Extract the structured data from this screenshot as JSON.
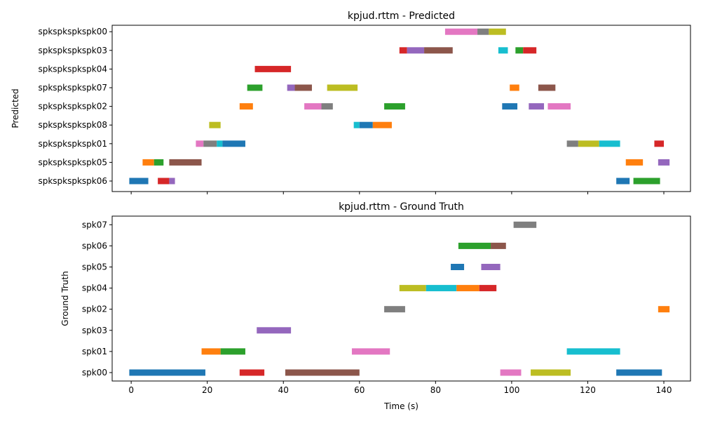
{
  "chart_data": [
    {
      "type": "broken_barh",
      "title": "kpjud.rttm - Predicted",
      "ylabel": "Predicted",
      "xlabel": "",
      "xlim": [
        -5,
        147
      ],
      "xticks": [
        0,
        20,
        40,
        60,
        80,
        100,
        120,
        140
      ],
      "show_xtick_labels": false,
      "speakers": [
        "spkspkspkspk06",
        "spkspkspkspk05",
        "spkspkspkspk01",
        "spkspkspkspk08",
        "spkspkspkspk02",
        "spkspkspkspk07",
        "spkspkspkspk04",
        "spkspkspkspk03",
        "spkspkspkspk00"
      ],
      "segments": [
        {
          "speaker": "spkspkspkspk00",
          "start": 82.5,
          "end": 91.0,
          "color": "#e377c2"
        },
        {
          "speaker": "spkspkspkspk00",
          "start": 91.0,
          "end": 94.0,
          "color": "#7f7f7f"
        },
        {
          "speaker": "spkspkspkspk00",
          "start": 94.0,
          "end": 98.5,
          "color": "#bcbd22"
        },
        {
          "speaker": "spkspkspkspk03",
          "start": 70.5,
          "end": 72.5,
          "color": "#d62728"
        },
        {
          "speaker": "spkspkspkspk03",
          "start": 72.5,
          "end": 77.0,
          "color": "#9467bd"
        },
        {
          "speaker": "spkspkspkspk03",
          "start": 77.0,
          "end": 84.5,
          "color": "#8c564b"
        },
        {
          "speaker": "spkspkspkspk03",
          "start": 96.5,
          "end": 99.0,
          "color": "#17becf"
        },
        {
          "speaker": "spkspkspkspk03",
          "start": 101.0,
          "end": 103.0,
          "color": "#2ca02c"
        },
        {
          "speaker": "spkspkspkspk03",
          "start": 103.0,
          "end": 106.5,
          "color": "#d62728"
        },
        {
          "speaker": "spkspkspkspk04",
          "start": 32.5,
          "end": 42.0,
          "color": "#d62728"
        },
        {
          "speaker": "spkspkspkspk07",
          "start": 30.5,
          "end": 34.5,
          "color": "#2ca02c"
        },
        {
          "speaker": "spkspkspkspk07",
          "start": 41.0,
          "end": 43.0,
          "color": "#9467bd"
        },
        {
          "speaker": "spkspkspkspk07",
          "start": 43.0,
          "end": 47.5,
          "color": "#8c564b"
        },
        {
          "speaker": "spkspkspkspk07",
          "start": 51.5,
          "end": 59.5,
          "color": "#bcbd22"
        },
        {
          "speaker": "spkspkspkspk07",
          "start": 99.5,
          "end": 102.0,
          "color": "#ff7f0e"
        },
        {
          "speaker": "spkspkspkspk07",
          "start": 107.0,
          "end": 111.5,
          "color": "#8c564b"
        },
        {
          "speaker": "spkspkspkspk02",
          "start": 28.5,
          "end": 32.0,
          "color": "#ff7f0e"
        },
        {
          "speaker": "spkspkspkspk02",
          "start": 45.5,
          "end": 50.0,
          "color": "#e377c2"
        },
        {
          "speaker": "spkspkspkspk02",
          "start": 50.0,
          "end": 53.0,
          "color": "#7f7f7f"
        },
        {
          "speaker": "spkspkspkspk02",
          "start": 66.5,
          "end": 72.0,
          "color": "#2ca02c"
        },
        {
          "speaker": "spkspkspkspk02",
          "start": 97.5,
          "end": 101.5,
          "color": "#1f77b4"
        },
        {
          "speaker": "spkspkspkspk02",
          "start": 104.5,
          "end": 108.5,
          "color": "#9467bd"
        },
        {
          "speaker": "spkspkspkspk02",
          "start": 109.5,
          "end": 115.5,
          "color": "#e377c2"
        },
        {
          "speaker": "spkspkspkspk08",
          "start": 20.5,
          "end": 23.5,
          "color": "#bcbd22"
        },
        {
          "speaker": "spkspkspkspk08",
          "start": 58.5,
          "end": 60.0,
          "color": "#17becf"
        },
        {
          "speaker": "spkspkspkspk08",
          "start": 60.0,
          "end": 63.5,
          "color": "#1f77b4"
        },
        {
          "speaker": "spkspkspkspk08",
          "start": 63.5,
          "end": 68.5,
          "color": "#ff7f0e"
        },
        {
          "speaker": "spkspkspkspk01",
          "start": 17.0,
          "end": 19.0,
          "color": "#e377c2"
        },
        {
          "speaker": "spkspkspkspk01",
          "start": 19.0,
          "end": 22.5,
          "color": "#7f7f7f"
        },
        {
          "speaker": "spkspkspkspk01",
          "start": 22.5,
          "end": 24.0,
          "color": "#17becf"
        },
        {
          "speaker": "spkspkspkspk01",
          "start": 24.0,
          "end": 30.0,
          "color": "#1f77b4"
        },
        {
          "speaker": "spkspkspkspk01",
          "start": 114.5,
          "end": 117.5,
          "color": "#7f7f7f"
        },
        {
          "speaker": "spkspkspkspk01",
          "start": 117.5,
          "end": 123.0,
          "color": "#bcbd22"
        },
        {
          "speaker": "spkspkspkspk01",
          "start": 123.0,
          "end": 128.5,
          "color": "#17becf"
        },
        {
          "speaker": "spkspkspkspk01",
          "start": 137.5,
          "end": 140.0,
          "color": "#d62728"
        },
        {
          "speaker": "spkspkspkspk05",
          "start": 3.0,
          "end": 6.0,
          "color": "#ff7f0e"
        },
        {
          "speaker": "spkspkspkspk05",
          "start": 6.0,
          "end": 8.5,
          "color": "#2ca02c"
        },
        {
          "speaker": "spkspkspkspk05",
          "start": 10.0,
          "end": 18.5,
          "color": "#8c564b"
        },
        {
          "speaker": "spkspkspkspk05",
          "start": 130.0,
          "end": 134.5,
          "color": "#ff7f0e"
        },
        {
          "speaker": "spkspkspkspk05",
          "start": 138.5,
          "end": 141.5,
          "color": "#9467bd"
        },
        {
          "speaker": "spkspkspkspk06",
          "start": -0.5,
          "end": 4.5,
          "color": "#1f77b4"
        },
        {
          "speaker": "spkspkspkspk06",
          "start": 7.0,
          "end": 10.0,
          "color": "#d62728"
        },
        {
          "speaker": "spkspkspkspk06",
          "start": 10.0,
          "end": 11.5,
          "color": "#9467bd"
        },
        {
          "speaker": "spkspkspkspk06",
          "start": 127.5,
          "end": 131.0,
          "color": "#1f77b4"
        },
        {
          "speaker": "spkspkspkspk06",
          "start": 132.0,
          "end": 139.0,
          "color": "#2ca02c"
        }
      ]
    },
    {
      "type": "broken_barh",
      "title": "kpjud.rttm - Ground Truth",
      "ylabel": "Ground Truth",
      "xlabel": "Time (s)",
      "xlim": [
        -5,
        147
      ],
      "xticks": [
        0,
        20,
        40,
        60,
        80,
        100,
        120,
        140
      ],
      "show_xtick_labels": true,
      "speakers": [
        "spk00",
        "spk01",
        "spk03",
        "spk02",
        "spk04",
        "spk05",
        "spk06",
        "spk07"
      ],
      "segments": [
        {
          "speaker": "spk07",
          "start": 100.5,
          "end": 106.5,
          "color": "#7f7f7f"
        },
        {
          "speaker": "spk06",
          "start": 86.0,
          "end": 94.5,
          "color": "#2ca02c"
        },
        {
          "speaker": "spk06",
          "start": 94.5,
          "end": 98.5,
          "color": "#8c564b"
        },
        {
          "speaker": "spk05",
          "start": 84.0,
          "end": 87.5,
          "color": "#1f77b4"
        },
        {
          "speaker": "spk05",
          "start": 92.0,
          "end": 97.0,
          "color": "#9467bd"
        },
        {
          "speaker": "spk04",
          "start": 70.5,
          "end": 77.5,
          "color": "#bcbd22"
        },
        {
          "speaker": "spk04",
          "start": 77.5,
          "end": 85.5,
          "color": "#17becf"
        },
        {
          "speaker": "spk04",
          "start": 85.5,
          "end": 91.5,
          "color": "#ff7f0e"
        },
        {
          "speaker": "spk04",
          "start": 91.5,
          "end": 96.0,
          "color": "#d62728"
        },
        {
          "speaker": "spk02",
          "start": 66.5,
          "end": 72.0,
          "color": "#7f7f7f"
        },
        {
          "speaker": "spk02",
          "start": 138.5,
          "end": 141.5,
          "color": "#ff7f0e"
        },
        {
          "speaker": "spk03",
          "start": 33.0,
          "end": 42.0,
          "color": "#9467bd"
        },
        {
          "speaker": "spk01",
          "start": 18.5,
          "end": 23.5,
          "color": "#ff7f0e"
        },
        {
          "speaker": "spk01",
          "start": 23.5,
          "end": 30.0,
          "color": "#2ca02c"
        },
        {
          "speaker": "spk01",
          "start": 58.0,
          "end": 68.0,
          "color": "#e377c2"
        },
        {
          "speaker": "spk01",
          "start": 114.5,
          "end": 128.5,
          "color": "#17becf"
        },
        {
          "speaker": "spk00",
          "start": -0.5,
          "end": 19.5,
          "color": "#1f77b4"
        },
        {
          "speaker": "spk00",
          "start": 28.5,
          "end": 35.0,
          "color": "#d62728"
        },
        {
          "speaker": "spk00",
          "start": 40.5,
          "end": 60.0,
          "color": "#8c564b"
        },
        {
          "speaker": "spk00",
          "start": 97.0,
          "end": 102.5,
          "color": "#e377c2"
        },
        {
          "speaker": "spk00",
          "start": 105.0,
          "end": 115.5,
          "color": "#bcbd22"
        },
        {
          "speaker": "spk00",
          "start": 127.5,
          "end": 139.5,
          "color": "#1f77b4"
        }
      ]
    }
  ]
}
